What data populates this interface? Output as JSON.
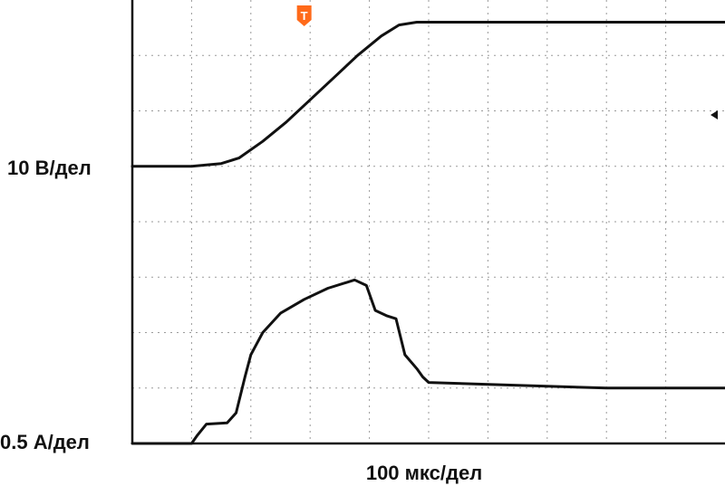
{
  "chart_data": {
    "type": "line",
    "grid": true,
    "grid_divisions": {
      "x": 10,
      "y": 8
    },
    "labels": {
      "voltage_scale": "10 В/дел",
      "current_scale": "0.5 А/дел",
      "time_scale": "100 мкс/дел"
    },
    "trigger_marker": {
      "glyph": "T",
      "time_div": 2.9,
      "color": "#ff6a1a"
    },
    "series": [
      {
        "channel": "voltage",
        "color": "#111111",
        "x": [
          0,
          1.0,
          1.5,
          1.8,
          2.2,
          2.6,
          3.0,
          3.4,
          3.8,
          4.2,
          4.5,
          4.8,
          6.0,
          8.0,
          10.0
        ],
        "y": [
          5.0,
          5.0,
          5.05,
          5.15,
          5.45,
          5.8,
          6.2,
          6.6,
          7.0,
          7.35,
          7.55,
          7.6,
          7.6,
          7.6,
          7.6
        ]
      },
      {
        "channel": "current",
        "color": "#111111",
        "x": [
          0,
          1.0,
          1.1,
          1.25,
          1.6,
          1.75,
          1.9,
          2.0,
          2.2,
          2.5,
          2.9,
          3.3,
          3.75,
          3.95,
          4.1,
          4.3,
          4.45,
          4.6,
          4.8,
          4.9,
          5.0,
          6.5,
          8.0,
          10.0
        ],
        "y": [
          0.0,
          0.0,
          0.15,
          0.35,
          0.37,
          0.55,
          1.2,
          1.6,
          2.0,
          2.35,
          2.6,
          2.8,
          2.95,
          2.85,
          2.4,
          2.3,
          2.25,
          1.6,
          1.35,
          1.2,
          1.1,
          1.05,
          1.0,
          1.0
        ]
      }
    ]
  }
}
